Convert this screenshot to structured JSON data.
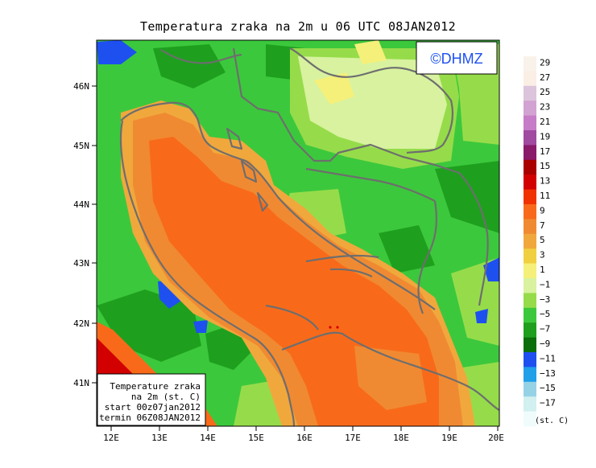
{
  "title": "Temperatura zraka na 2m u 06 UTC 08JAN2012",
  "watermark": "©DHMZ",
  "info_box": {
    "line1": "Temperature zraka",
    "line2": "na 2m (st. C)",
    "line3": "start 00z07jan2012",
    "line4": "termin 06Z08JAN2012"
  },
  "lat_labels": [
    "46N",
    "45N",
    "44N",
    "43N",
    "42N",
    "41N"
  ],
  "lon_labels": [
    "12E",
    "13E",
    "14E",
    "15E",
    "16E",
    "17E",
    "18E",
    "19E",
    "20E"
  ],
  "legend": {
    "units": "(st. C)",
    "labels": [
      "29",
      "27",
      "25",
      "23",
      "21",
      "19",
      "17",
      "15",
      "13",
      "11",
      "9",
      "7",
      "5",
      "3",
      "1",
      "−1",
      "−3",
      "−5",
      "−7",
      "−9",
      "−11",
      "−13",
      "−15",
      "−17"
    ],
    "colors": [
      "#fbeee4",
      "#dcc4dc",
      "#d2a2d2",
      "#c67cc6",
      "#a04aa0",
      "#8a1a6a",
      "#aa0000",
      "#d20000",
      "#f03200",
      "#f86a1a",
      "#f08a32",
      "#f0a83c",
      "#f0d040",
      "#f5f07a",
      "#d8f2a0",
      "#96dc4a",
      "#3cc83c",
      "#1ea01e",
      "#0a6e0a",
      "#1e50f0",
      "#20a0e8",
      "#96d2e6",
      "#d2f0f0",
      "#f0fcfc"
    ],
    "colors_top": "#f8f2ea"
  },
  "colors": {
    "sea_warm": "#f86a1a",
    "sea_mid": "#f08a32",
    "coast": "#f0a83c",
    "land_green": "#3cc83c",
    "land_dark": "#1ea01e",
    "plain": "#d8f2a0",
    "border": "#6e6e6e"
  }
}
